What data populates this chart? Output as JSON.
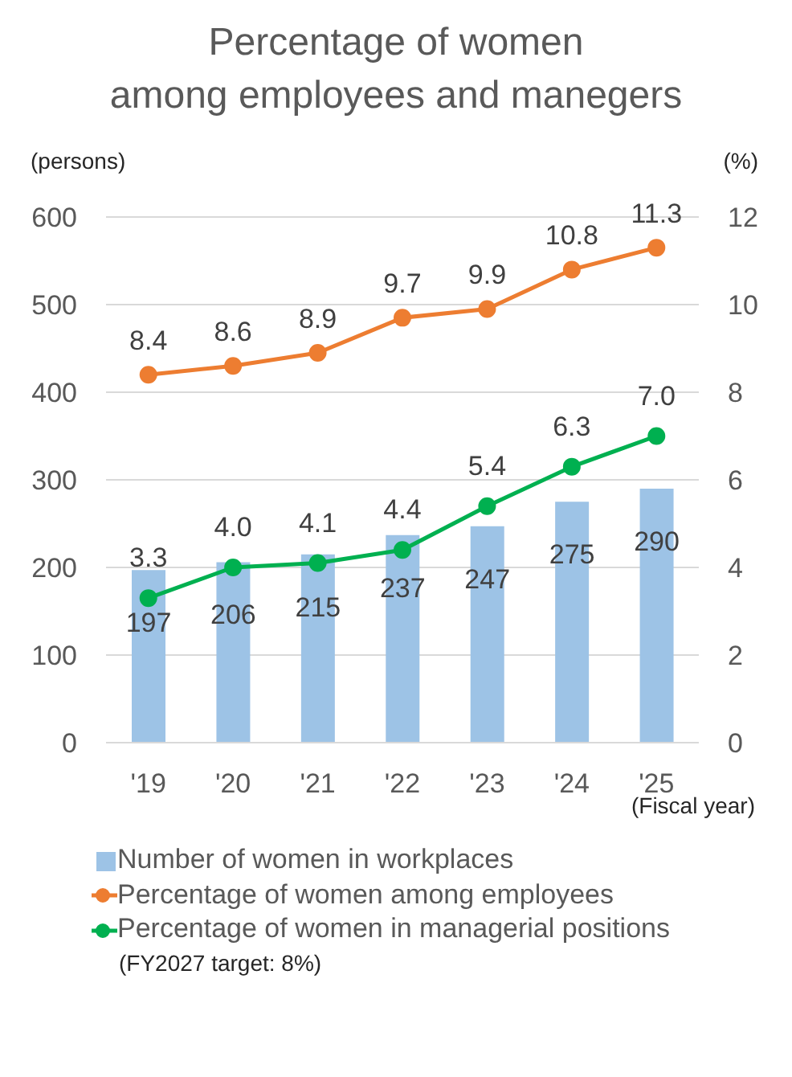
{
  "chart_data": {
    "type": "bar",
    "title": "Percentage of women\namong employees and manegers",
    "ylabel": "(persons)",
    "y2label": "(%)",
    "xlabel": "(Fiscal year)",
    "annotations": [
      "(FY2027 target: 8%)"
    ],
    "categories": [
      "'19",
      "'20",
      "'21",
      "'22",
      "'23",
      "'24",
      "'25"
    ],
    "series": [
      {
        "name": "Number of women in workplaces",
        "color": "#9dc3e6",
        "values": [
          197,
          206,
          215,
          237,
          247,
          275,
          290
        ]
      },
      {
        "name": "Percentage of women among employees",
        "type": "line",
        "axis": "y2",
        "color": "#ed7d31",
        "values": [
          8.4,
          8.6,
          8.9,
          9.7,
          9.9,
          10.8,
          11.3
        ]
      },
      {
        "name": "Percentage of women in managerial positions",
        "type": "line",
        "axis": "y2",
        "color": "#00b050",
        "values": [
          3.3,
          4.0,
          4.1,
          4.4,
          5.4,
          6.3,
          7.0
        ],
        "value_labels": [
          "3.3",
          "4.0",
          "4.1",
          "4.4",
          "5.4",
          "6.3",
          "7.0"
        ]
      }
    ],
    "ylim": [
      0,
      600
    ],
    "yticks": [
      0,
      100,
      200,
      300,
      400,
      500,
      600
    ],
    "y2lim": [
      0,
      12
    ],
    "y2ticks": [
      0,
      2,
      4,
      6,
      8,
      10,
      12
    ],
    "grid": "y",
    "legend": "bottom",
    "marker": "circle",
    "line_style": "solid",
    "data_labels": true
  }
}
